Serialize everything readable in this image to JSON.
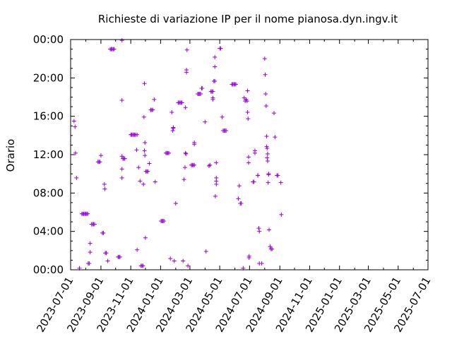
{
  "chart_data": {
    "type": "scatter",
    "title": "Richieste di variazione IP per il nome pianosa.dyn.ingv.it",
    "xlabel": "",
    "ylabel": "Orario",
    "x_range": [
      "2023-07-01",
      "2025-07-01"
    ],
    "y_range_hours": [
      0,
      24
    ],
    "x_ticks": [
      "2023-07-01",
      "2023-09-01",
      "2023-11-01",
      "2024-01-01",
      "2024-03-01",
      "2024-05-01",
      "2024-07-01",
      "2024-09-01",
      "2024-11-01",
      "2025-01-01",
      "2025-03-01",
      "2025-05-01",
      "2025-07-01"
    ],
    "y_ticks": [
      "00:00",
      "04:00",
      "08:00",
      "12:00",
      "16:00",
      "20:00",
      "00:00"
    ],
    "y_tick_hours": [
      0,
      4,
      8,
      12,
      16,
      20,
      24
    ],
    "grid": false,
    "marker": "+",
    "color": "#9400d3",
    "series": [
      {
        "points": [
          [
            "2023-07-08",
            "15:30"
          ],
          [
            "2023-07-10",
            "14:55"
          ],
          [
            "2023-07-11",
            "12:10"
          ],
          [
            "2023-07-13",
            "09:35"
          ],
          [
            "2023-07-19",
            "00:10"
          ],
          [
            "2023-07-24",
            "05:50"
          ],
          [
            "2023-07-26",
            "05:50"
          ],
          [
            "2023-07-28",
            "05:50"
          ],
          [
            "2023-07-30",
            "05:50"
          ],
          [
            "2023-08-01",
            "05:50"
          ],
          [
            "2023-08-03",
            "05:50"
          ],
          [
            "2023-08-05",
            "05:50"
          ],
          [
            "2023-08-06",
            "00:40"
          ],
          [
            "2023-08-08",
            "00:40"
          ],
          [
            "2023-08-10",
            "02:45"
          ],
          [
            "2023-08-10",
            "01:50"
          ],
          [
            "2023-08-13",
            "04:45"
          ],
          [
            "2023-08-15",
            "04:45"
          ],
          [
            "2023-08-17",
            "04:45"
          ],
          [
            "2023-08-19",
            "04:45"
          ],
          [
            "2023-08-26",
            "11:15"
          ],
          [
            "2023-08-28",
            "11:15"
          ],
          [
            "2023-08-30",
            "11:15"
          ],
          [
            "2023-09-01",
            "11:55"
          ],
          [
            "2023-09-04",
            "03:50"
          ],
          [
            "2023-09-06",
            "03:50"
          ],
          [
            "2023-09-08",
            "08:55"
          ],
          [
            "2023-09-09",
            "08:25"
          ],
          [
            "2023-09-10",
            "01:45"
          ],
          [
            "2023-09-12",
            "01:45"
          ],
          [
            "2023-09-15",
            "00:55"
          ],
          [
            "2023-09-20",
            "23:00"
          ],
          [
            "2023-09-22",
            "23:00"
          ],
          [
            "2023-09-24",
            "23:00"
          ],
          [
            "2023-09-26",
            "23:00"
          ],
          [
            "2023-09-28",
            "23:00"
          ],
          [
            "2023-10-06",
            "01:20"
          ],
          [
            "2023-10-08",
            "01:20"
          ],
          [
            "2023-10-10",
            "01:20"
          ],
          [
            "2023-10-14",
            "09:35"
          ],
          [
            "2023-10-14",
            "10:30"
          ],
          [
            "2023-10-14",
            "11:50"
          ],
          [
            "2023-10-14",
            "17:40"
          ],
          [
            "2023-10-14",
            "23:55"
          ],
          [
            "2023-10-16",
            "11:35"
          ],
          [
            "2023-10-18",
            "11:35"
          ],
          [
            "2023-10-20",
            "11:35"
          ],
          [
            "2023-11-01",
            "14:05"
          ],
          [
            "2023-11-03",
            "14:05"
          ],
          [
            "2023-11-05",
            "14:05"
          ],
          [
            "2023-11-07",
            "14:05"
          ],
          [
            "2023-11-09",
            "14:05"
          ],
          [
            "2023-11-11",
            "14:05"
          ],
          [
            "2023-11-13",
            "12:30"
          ],
          [
            "2023-11-14",
            "02:05"
          ],
          [
            "2023-11-14",
            "14:05"
          ],
          [
            "2023-11-17",
            "10:40"
          ],
          [
            "2023-11-20",
            "09:15"
          ],
          [
            "2023-11-22",
            "00:25"
          ],
          [
            "2023-11-24",
            "00:25"
          ],
          [
            "2023-11-26",
            "00:25"
          ],
          [
            "2023-11-27",
            "08:55"
          ],
          [
            "2023-11-28",
            "15:55"
          ],
          [
            "2023-11-29",
            "19:25"
          ],
          [
            "2023-11-29",
            "12:25"
          ],
          [
            "2023-11-30",
            "13:15"
          ],
          [
            "2023-11-30",
            "11:55"
          ],
          [
            "2023-12-01",
            "03:20"
          ],
          [
            "2023-12-02",
            "10:15"
          ],
          [
            "2023-12-04",
            "10:15"
          ],
          [
            "2023-12-06",
            "10:15"
          ],
          [
            "2023-12-09",
            "11:05"
          ],
          [
            "2023-12-12",
            "16:40"
          ],
          [
            "2023-12-14",
            "16:40"
          ],
          [
            "2023-12-16",
            "16:40"
          ],
          [
            "2023-12-19",
            "17:45"
          ],
          [
            "2023-12-21",
            "09:10"
          ],
          [
            "2024-01-02",
            "05:05"
          ],
          [
            "2024-01-04",
            "05:05"
          ],
          [
            "2024-01-06",
            "05:05"
          ],
          [
            "2024-01-08",
            "05:05"
          ],
          [
            "2024-01-12",
            "12:10"
          ],
          [
            "2024-01-14",
            "12:10"
          ],
          [
            "2024-01-16",
            "12:10"
          ],
          [
            "2024-01-18",
            "12:10"
          ],
          [
            "2024-01-21",
            "01:10"
          ],
          [
            "2024-01-24",
            "16:25"
          ],
          [
            "2024-01-26",
            "14:30"
          ],
          [
            "2024-01-27",
            "14:50"
          ],
          [
            "2024-01-27",
            "14:45"
          ],
          [
            "2024-01-29",
            "00:55"
          ],
          [
            "2024-02-01",
            "06:55"
          ],
          [
            "2024-02-06",
            "17:25"
          ],
          [
            "2024-02-08",
            "17:25"
          ],
          [
            "2024-02-10",
            "17:25"
          ],
          [
            "2024-02-12",
            "17:25"
          ],
          [
            "2024-02-14",
            "17:25"
          ],
          [
            "2024-02-16",
            "00:55"
          ],
          [
            "2024-02-18",
            "09:25"
          ],
          [
            "2024-02-20",
            "10:40"
          ],
          [
            "2024-02-21",
            "12:10"
          ],
          [
            "2024-02-22",
            "12:05"
          ],
          [
            "2024-02-21",
            "16:55"
          ],
          [
            "2024-02-23",
            "20:50"
          ],
          [
            "2024-02-23",
            "20:35"
          ],
          [
            "2024-02-24",
            "22:55"
          ],
          [
            "2024-02-26",
            "00:25"
          ],
          [
            "2024-03-04",
            "10:55"
          ],
          [
            "2024-03-06",
            "10:55"
          ],
          [
            "2024-03-08",
            "10:55"
          ],
          [
            "2024-03-10",
            "10:55"
          ],
          [
            "2024-03-10",
            "13:15"
          ],
          [
            "2024-03-10",
            "13:05"
          ],
          [
            "2024-03-17",
            "18:20"
          ],
          [
            "2024-03-19",
            "18:20"
          ],
          [
            "2024-03-21",
            "18:20"
          ],
          [
            "2024-03-23",
            "18:20"
          ],
          [
            "2024-03-25",
            "18:55"
          ],
          [
            "2024-03-26",
            "18:55"
          ],
          [
            "2024-04-01",
            "15:25"
          ],
          [
            "2024-04-03",
            "01:55"
          ],
          [
            "2024-04-09",
            "10:50"
          ],
          [
            "2024-04-11",
            "10:55"
          ],
          [
            "2024-04-13",
            "18:35"
          ],
          [
            "2024-04-15",
            "18:35"
          ],
          [
            "2024-04-17",
            "18:35"
          ],
          [
            "2024-04-17",
            "17:45"
          ],
          [
            "2024-04-17",
            "17:55"
          ],
          [
            "2024-04-19",
            "19:40"
          ],
          [
            "2024-04-21",
            "19:40"
          ],
          [
            "2024-04-21",
            "21:10"
          ],
          [
            "2024-04-21",
            "22:10"
          ],
          [
            "2024-04-22",
            "07:40"
          ],
          [
            "2024-04-24",
            "09:35"
          ],
          [
            "2024-04-24",
            "09:15"
          ],
          [
            "2024-04-24",
            "11:10"
          ],
          [
            "2024-04-24",
            "08:55"
          ],
          [
            "2024-05-01",
            "23:05"
          ],
          [
            "2024-05-03",
            "23:05"
          ],
          [
            "2024-05-06",
            "15:55"
          ],
          [
            "2024-05-08",
            "14:30"
          ],
          [
            "2024-05-10",
            "14:30"
          ],
          [
            "2024-05-12",
            "14:30"
          ],
          [
            "2024-05-14",
            "14:30"
          ],
          [
            "2024-05-26",
            "19:20"
          ],
          [
            "2024-05-28",
            "19:20"
          ],
          [
            "2024-05-30",
            "19:20"
          ],
          [
            "2024-06-01",
            "19:20"
          ],
          [
            "2024-06-03",
            "19:20"
          ],
          [
            "2024-06-08",
            "07:25"
          ],
          [
            "2024-06-10",
            "08:45"
          ],
          [
            "2024-06-12",
            "06:55"
          ],
          [
            "2024-06-14",
            "06:55"
          ],
          [
            "2024-06-18",
            "00:10"
          ],
          [
            "2024-06-20",
            "17:55"
          ],
          [
            "2024-06-22",
            "17:35"
          ],
          [
            "2024-06-24",
            "17:45"
          ],
          [
            "2024-06-26",
            "17:35"
          ],
          [
            "2024-06-27",
            "18:40"
          ],
          [
            "2024-06-27",
            "16:25"
          ],
          [
            "2024-06-28",
            "15:45"
          ],
          [
            "2024-06-29",
            "11:10"
          ],
          [
            "2024-06-29",
            "11:45"
          ],
          [
            "2024-06-30",
            "01:15"
          ],
          [
            "2024-06-30",
            "01:25"
          ],
          [
            "2024-07-08",
            "09:10"
          ],
          [
            "2024-07-10",
            "09:10"
          ],
          [
            "2024-07-12",
            "12:10"
          ],
          [
            "2024-07-12",
            "12:25"
          ],
          [
            "2024-07-18",
            "09:50"
          ],
          [
            "2024-07-18",
            "09:50"
          ],
          [
            "2024-07-20",
            "04:20"
          ],
          [
            "2024-07-21",
            "04:00"
          ],
          [
            "2024-07-21",
            "00:40"
          ],
          [
            "2024-07-26",
            "00:40"
          ],
          [
            "2024-08-01",
            "22:00"
          ],
          [
            "2024-08-02",
            "20:20"
          ],
          [
            "2024-08-03",
            "18:20"
          ],
          [
            "2024-08-04",
            "17:05"
          ],
          [
            "2024-08-05",
            "13:55"
          ],
          [
            "2024-08-05",
            "12:50"
          ],
          [
            "2024-08-06",
            "11:40"
          ],
          [
            "2024-08-06",
            "12:40"
          ],
          [
            "2024-08-07",
            "12:05"
          ],
          [
            "2024-08-07",
            "11:20"
          ],
          [
            "2024-08-08",
            "09:05"
          ],
          [
            "2024-08-09",
            "10:00"
          ],
          [
            "2024-08-09",
            "09:55"
          ],
          [
            "2024-08-10",
            "04:10"
          ],
          [
            "2024-08-12",
            "02:25"
          ],
          [
            "2024-08-14",
            "02:10"
          ],
          [
            "2024-08-16",
            "02:10"
          ],
          [
            "2024-08-20",
            "16:20"
          ],
          [
            "2024-08-22",
            "13:50"
          ],
          [
            "2024-08-26",
            "09:50"
          ],
          [
            "2024-08-28",
            "09:50"
          ],
          [
            "2024-09-03",
            "09:05"
          ],
          [
            "2024-09-04",
            "05:45"
          ]
        ]
      }
    ]
  }
}
